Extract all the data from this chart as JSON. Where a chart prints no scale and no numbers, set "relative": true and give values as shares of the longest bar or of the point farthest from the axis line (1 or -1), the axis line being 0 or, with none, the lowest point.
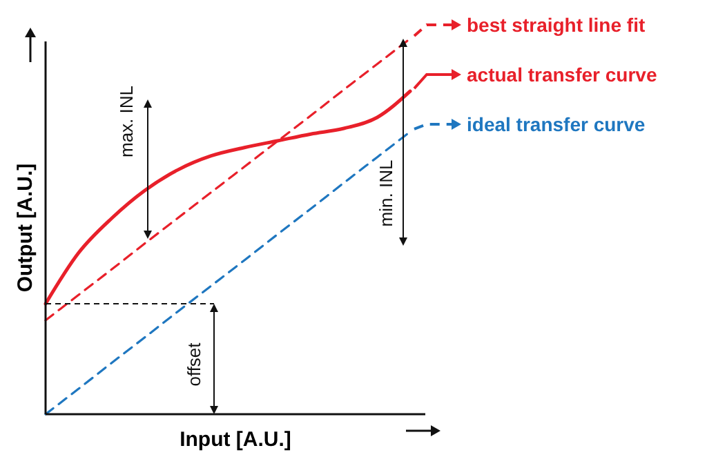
{
  "chart_data": {
    "type": "line",
    "relative": true,
    "xlabel": "Input [A.U.]",
    "ylabel": "Output [A.U.]",
    "categories": [
      null,
      null,
      null,
      null,
      null,
      null,
      null,
      null,
      null,
      null,
      null,
      null
    ],
    "series": [
      {
        "name": "best straight line fit",
        "color": "#e8202a",
        "line_style": "dashed",
        "values": [
          0.25,
          0.318,
          0.386,
          0.455,
          0.523,
          0.591,
          0.659,
          0.727,
          0.795,
          0.864,
          0.932,
          1.0
        ]
      },
      {
        "name": "actual transfer curve",
        "color": "#e8202a",
        "line_style": "solid",
        "values": [
          0.294,
          0.43,
          0.522,
          0.596,
          0.651,
          0.688,
          0.71,
          0.728,
          0.746,
          0.761,
          0.79,
          0.86
        ]
      },
      {
        "name": "ideal transfer curve",
        "color": "#1f77c0",
        "line_style": "dashed",
        "values": [
          0,
          0.068,
          0.137,
          0.205,
          0.274,
          0.342,
          0.41,
          0.479,
          0.547,
          0.616,
          0.684,
          0.752
        ]
      }
    ],
    "annotations": [
      "max. INL",
      "min. INL",
      "offset"
    ],
    "legend": "right",
    "marker": "none"
  }
}
